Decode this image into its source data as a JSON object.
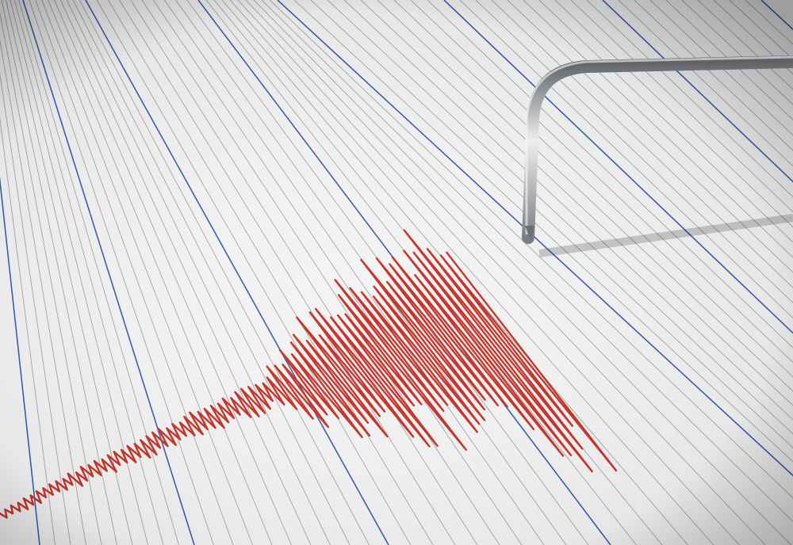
{
  "colors": {
    "paper": "#f3f3f3",
    "grid_minor": "#a7a7a7",
    "grid_major": "#3d5fae",
    "trace": "#c7352b",
    "needle": "#b9bcc0"
  }
}
